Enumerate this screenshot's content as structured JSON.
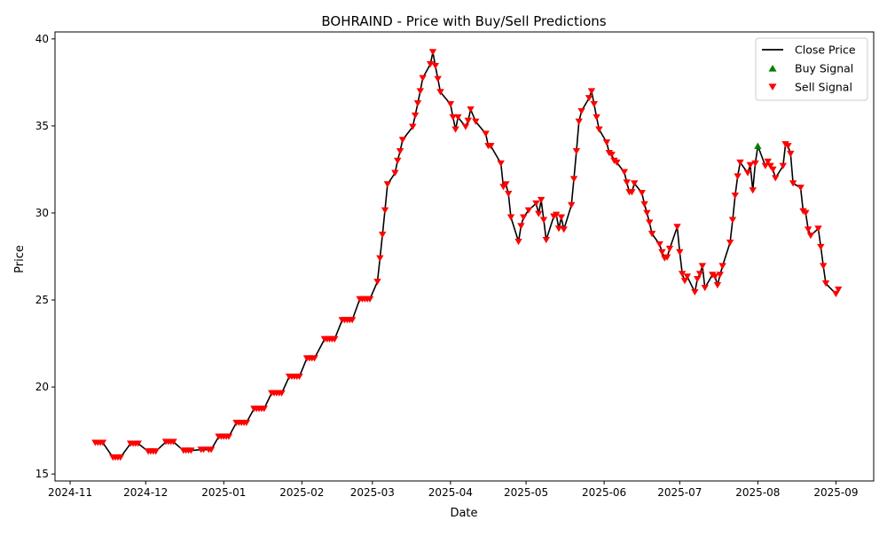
{
  "chart_data": {
    "type": "line",
    "title": "BOHRAIND - Price with Buy/Sell Predictions",
    "xlabel": "Date",
    "ylabel": "Price",
    "x_ticks": [
      "2024-11",
      "2024-12",
      "2025-01",
      "2025-02",
      "2025-03",
      "2025-04",
      "2025-05",
      "2025-06",
      "2025-07",
      "2025-08",
      "2025-09"
    ],
    "y_ticks": [
      15,
      20,
      25,
      30,
      35,
      40
    ],
    "xlim": [
      "2024-10-26",
      "2025-09-16"
    ],
    "ylim": [
      14.6,
      40.4
    ],
    "grid": false,
    "legend_position": "top-right",
    "legend": [
      {
        "label": "Close Price",
        "kind": "line",
        "color": "#000000"
      },
      {
        "label": "Buy Signal",
        "kind": "triangle-up",
        "color": "#008000"
      },
      {
        "label": "Sell Signal",
        "kind": "triangle-down",
        "color": "#ff0000"
      }
    ],
    "series": [
      {
        "name": "Close Price",
        "points": [
          [
            "2024-11-11",
            16.8
          ],
          [
            "2024-11-12",
            16.8
          ],
          [
            "2024-11-13",
            16.8
          ],
          [
            "2024-11-14",
            16.8
          ],
          [
            "2024-11-18",
            15.95
          ],
          [
            "2024-11-19",
            15.95
          ],
          [
            "2024-11-20",
            15.95
          ],
          [
            "2024-11-21",
            15.95
          ],
          [
            "2024-11-25",
            16.75
          ],
          [
            "2024-11-26",
            16.75
          ],
          [
            "2024-11-27",
            16.75
          ],
          [
            "2024-11-28",
            16.75
          ],
          [
            "2024-12-02",
            16.3
          ],
          [
            "2024-12-03",
            16.3
          ],
          [
            "2024-12-04",
            16.3
          ],
          [
            "2024-12-05",
            16.3
          ],
          [
            "2024-12-09",
            16.85
          ],
          [
            "2024-12-10",
            16.85
          ],
          [
            "2024-12-11",
            16.85
          ],
          [
            "2024-12-12",
            16.85
          ],
          [
            "2024-12-16",
            16.35
          ],
          [
            "2024-12-17",
            16.35
          ],
          [
            "2024-12-18",
            16.35
          ],
          [
            "2024-12-19",
            16.35
          ],
          [
            "2024-12-23",
            16.4
          ],
          [
            "2024-12-24",
            16.4
          ],
          [
            "2024-12-26",
            16.4
          ],
          [
            "2024-12-27",
            16.4
          ],
          [
            "2024-12-30",
            17.15
          ],
          [
            "2024-12-31",
            17.15
          ],
          [
            "2025-01-01",
            17.15
          ],
          [
            "2025-01-02",
            17.15
          ],
          [
            "2025-01-03",
            17.15
          ],
          [
            "2025-01-06",
            17.95
          ],
          [
            "2025-01-07",
            17.95
          ],
          [
            "2025-01-08",
            17.95
          ],
          [
            "2025-01-09",
            17.95
          ],
          [
            "2025-01-10",
            17.95
          ],
          [
            "2025-01-13",
            18.75
          ],
          [
            "2025-01-14",
            18.75
          ],
          [
            "2025-01-15",
            18.75
          ],
          [
            "2025-01-16",
            18.75
          ],
          [
            "2025-01-17",
            18.75
          ],
          [
            "2025-01-20",
            19.65
          ],
          [
            "2025-01-21",
            19.65
          ],
          [
            "2025-01-22",
            19.65
          ],
          [
            "2025-01-23",
            19.65
          ],
          [
            "2025-01-24",
            19.65
          ],
          [
            "2025-01-27",
            20.6
          ],
          [
            "2025-01-28",
            20.6
          ],
          [
            "2025-01-29",
            20.6
          ],
          [
            "2025-01-30",
            20.6
          ],
          [
            "2025-01-31",
            20.6
          ],
          [
            "2025-02-03",
            21.65
          ],
          [
            "2025-02-04",
            21.65
          ],
          [
            "2025-02-05",
            21.65
          ],
          [
            "2025-02-06",
            21.65
          ],
          [
            "2025-02-10",
            22.75
          ],
          [
            "2025-02-11",
            22.75
          ],
          [
            "2025-02-12",
            22.75
          ],
          [
            "2025-02-13",
            22.75
          ],
          [
            "2025-02-14",
            22.75
          ],
          [
            "2025-02-17",
            23.85
          ],
          [
            "2025-02-18",
            23.85
          ],
          [
            "2025-02-19",
            23.85
          ],
          [
            "2025-02-20",
            23.85
          ],
          [
            "2025-02-21",
            23.85
          ],
          [
            "2025-02-24",
            25.05
          ],
          [
            "2025-02-25",
            25.05
          ],
          [
            "2025-02-26",
            25.05
          ],
          [
            "2025-02-27",
            25.05
          ],
          [
            "2025-02-28",
            25.05
          ],
          [
            "2025-03-03",
            26.05
          ],
          [
            "2025-03-04",
            27.4
          ],
          [
            "2025-03-05",
            28.75
          ],
          [
            "2025-03-06",
            30.15
          ],
          [
            "2025-03-07",
            31.65
          ],
          [
            "2025-03-10",
            32.3
          ],
          [
            "2025-03-11",
            33.0
          ],
          [
            "2025-03-12",
            33.55
          ],
          [
            "2025-03-13",
            34.2
          ],
          [
            "2025-03-17",
            34.95
          ],
          [
            "2025-03-18",
            35.6
          ],
          [
            "2025-03-19",
            36.3
          ],
          [
            "2025-03-20",
            37.0
          ],
          [
            "2025-03-21",
            37.75
          ],
          [
            "2025-03-24",
            38.55
          ],
          [
            "2025-03-25",
            39.25
          ],
          [
            "2025-03-26",
            38.45
          ],
          [
            "2025-03-27",
            37.7
          ],
          [
            "2025-03-28",
            36.95
          ],
          [
            "2025-04-01",
            36.25
          ],
          [
            "2025-04-02",
            35.5
          ],
          [
            "2025-04-03",
            34.8
          ],
          [
            "2025-04-04",
            35.5
          ],
          [
            "2025-04-07",
            34.95
          ],
          [
            "2025-04-08",
            35.3
          ],
          [
            "2025-04-09",
            35.95
          ],
          [
            "2025-04-11",
            35.25
          ],
          [
            "2025-04-15",
            34.55
          ],
          [
            "2025-04-16",
            33.85
          ],
          [
            "2025-04-17",
            33.85
          ],
          [
            "2025-04-21",
            32.85
          ],
          [
            "2025-04-22",
            31.5
          ],
          [
            "2025-04-23",
            31.65
          ],
          [
            "2025-04-24",
            31.1
          ],
          [
            "2025-04-25",
            29.75
          ],
          [
            "2025-04-28",
            28.35
          ],
          [
            "2025-04-29",
            29.25
          ],
          [
            "2025-04-30",
            29.75
          ],
          [
            "2025-05-02",
            30.15
          ],
          [
            "2025-05-05",
            30.55
          ],
          [
            "2025-05-06",
            29.95
          ],
          [
            "2025-05-07",
            30.75
          ],
          [
            "2025-05-08",
            29.6
          ],
          [
            "2025-05-09",
            28.45
          ],
          [
            "2025-05-12",
            29.8
          ],
          [
            "2025-05-13",
            29.9
          ],
          [
            "2025-05-14",
            29.1
          ],
          [
            "2025-05-15",
            29.75
          ],
          [
            "2025-05-16",
            29.05
          ],
          [
            "2025-05-19",
            30.45
          ],
          [
            "2025-05-20",
            31.95
          ],
          [
            "2025-05-21",
            33.55
          ],
          [
            "2025-05-22",
            35.25
          ],
          [
            "2025-05-23",
            35.85
          ],
          [
            "2025-05-26",
            36.6
          ],
          [
            "2025-05-27",
            37.0
          ],
          [
            "2025-05-28",
            36.25
          ],
          [
            "2025-05-29",
            35.5
          ],
          [
            "2025-05-30",
            34.8
          ],
          [
            "2025-06-02",
            34.05
          ],
          [
            "2025-06-03",
            33.45
          ],
          [
            "2025-06-04",
            33.35
          ],
          [
            "2025-06-05",
            33.0
          ],
          [
            "2025-06-06",
            32.9
          ],
          [
            "2025-06-09",
            32.35
          ],
          [
            "2025-06-10",
            31.75
          ],
          [
            "2025-06-11",
            31.2
          ],
          [
            "2025-06-12",
            31.2
          ],
          [
            "2025-06-13",
            31.7
          ],
          [
            "2025-06-16",
            31.15
          ],
          [
            "2025-06-17",
            30.5
          ],
          [
            "2025-06-18",
            30.0
          ],
          [
            "2025-06-19",
            29.45
          ],
          [
            "2025-06-20",
            28.8
          ],
          [
            "2025-06-23",
            28.2
          ],
          [
            "2025-06-24",
            27.75
          ],
          [
            "2025-06-25",
            27.4
          ],
          [
            "2025-06-26",
            27.45
          ],
          [
            "2025-06-27",
            27.95
          ],
          [
            "2025-06-30",
            29.2
          ],
          [
            "2025-07-01",
            27.75
          ],
          [
            "2025-07-02",
            26.5
          ],
          [
            "2025-07-03",
            26.1
          ],
          [
            "2025-07-04",
            26.35
          ],
          [
            "2025-07-07",
            25.45
          ],
          [
            "2025-07-08",
            26.2
          ],
          [
            "2025-07-09",
            26.5
          ],
          [
            "2025-07-10",
            26.95
          ],
          [
            "2025-07-11",
            25.7
          ],
          [
            "2025-07-14",
            26.45
          ],
          [
            "2025-07-15",
            26.35
          ],
          [
            "2025-07-16",
            25.85
          ],
          [
            "2025-07-17",
            26.45
          ],
          [
            "2025-07-18",
            26.95
          ],
          [
            "2025-07-21",
            28.3
          ],
          [
            "2025-07-22",
            29.6
          ],
          [
            "2025-07-23",
            31.0
          ],
          [
            "2025-07-24",
            32.1
          ],
          [
            "2025-07-25",
            32.9
          ],
          [
            "2025-07-28",
            32.3
          ],
          [
            "2025-07-29",
            32.75
          ],
          [
            "2025-07-30",
            31.3
          ],
          [
            "2025-07-31",
            32.85
          ],
          [
            "2025-08-01",
            33.85
          ],
          [
            "2025-08-04",
            32.7
          ],
          [
            "2025-08-05",
            32.95
          ],
          [
            "2025-08-06",
            32.7
          ],
          [
            "2025-08-07",
            32.5
          ],
          [
            "2025-08-08",
            32.0
          ],
          [
            "2025-08-11",
            32.7
          ],
          [
            "2025-08-12",
            33.95
          ],
          [
            "2025-08-13",
            33.85
          ],
          [
            "2025-08-14",
            33.4
          ],
          [
            "2025-08-15",
            31.7
          ],
          [
            "2025-08-18",
            31.45
          ],
          [
            "2025-08-19",
            30.1
          ],
          [
            "2025-08-20",
            30.0
          ],
          [
            "2025-08-21",
            29.05
          ],
          [
            "2025-08-22",
            28.7
          ],
          [
            "2025-08-25",
            29.1
          ],
          [
            "2025-08-26",
            28.05
          ],
          [
            "2025-08-27",
            26.95
          ],
          [
            "2025-08-28",
            25.95
          ],
          [
            "2025-09-01",
            25.35
          ],
          [
            "2025-09-02",
            25.6
          ]
        ]
      },
      {
        "name": "Buy Signal",
        "points": [
          [
            "2025-08-01",
            33.85
          ]
        ]
      },
      {
        "name": "Sell Signal",
        "note_on_points": "every Close Price point except 2025-08-01"
      }
    ]
  }
}
